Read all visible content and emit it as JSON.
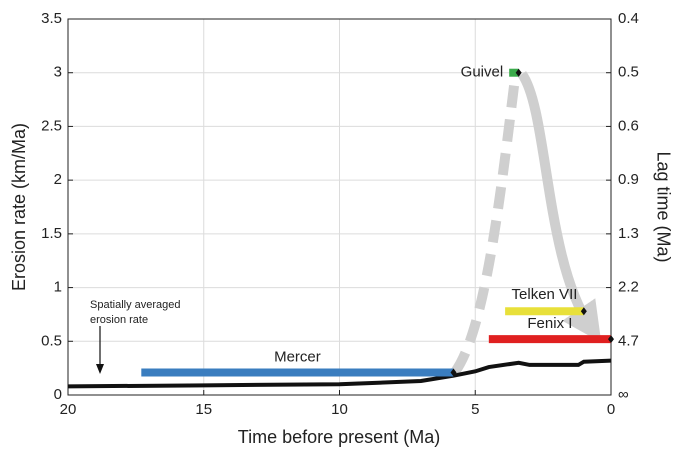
{
  "chart_data": {
    "type": "line",
    "x_label": "Time before present (Ma)",
    "y_label": "Erosion rate (km/Ma)",
    "y2_label": "Lag time (Ma)",
    "annotation": [
      "Spatially averaged",
      "erosion rate"
    ],
    "xlim": [
      20,
      0
    ],
    "xticks": [
      20,
      15,
      10,
      5,
      0
    ],
    "ylim": [
      0,
      3.5
    ],
    "yticks": [
      0,
      0.5,
      1,
      1.5,
      2,
      2.5,
      3,
      3.5
    ],
    "y2ticks": [
      {
        "value": null,
        "label": "∞"
      },
      4.7,
      2.2,
      1.3,
      0.9,
      0.6,
      0.5,
      0.4
    ],
    "grid": true,
    "series": [
      {
        "color": "#111111",
        "x": [
          20,
          15,
          10,
          7,
          5.8,
          5,
          4.5,
          3.4,
          3,
          1.2,
          1,
          0
        ],
        "values": [
          0.08,
          0.09,
          0.1,
          0.13,
          0.18,
          0.22,
          0.26,
          0.3,
          0.28,
          0.28,
          0.31,
          0.32
        ]
      },
      {
        "name": "Mercer",
        "style": "range",
        "color": "#3a7dbf",
        "x": [
          17.3,
          5.8
        ],
        "values": [
          0.21,
          0.21
        ]
      },
      {
        "name": "Telken VII",
        "style": "range",
        "color": "#e8e03a",
        "x": [
          3.9,
          1.0
        ],
        "values": [
          0.78,
          0.78
        ]
      },
      {
        "name": "Fenix I",
        "style": "range",
        "color": "#e02020",
        "x": [
          4.5,
          0
        ],
        "values": [
          0.52,
          0.52
        ]
      },
      {
        "name": "Guivel",
        "style": "range",
        "color": "#3aaa4a",
        "x": [
          3.75,
          3.4
        ],
        "values": [
          3.0,
          3.0
        ]
      }
    ]
  }
}
